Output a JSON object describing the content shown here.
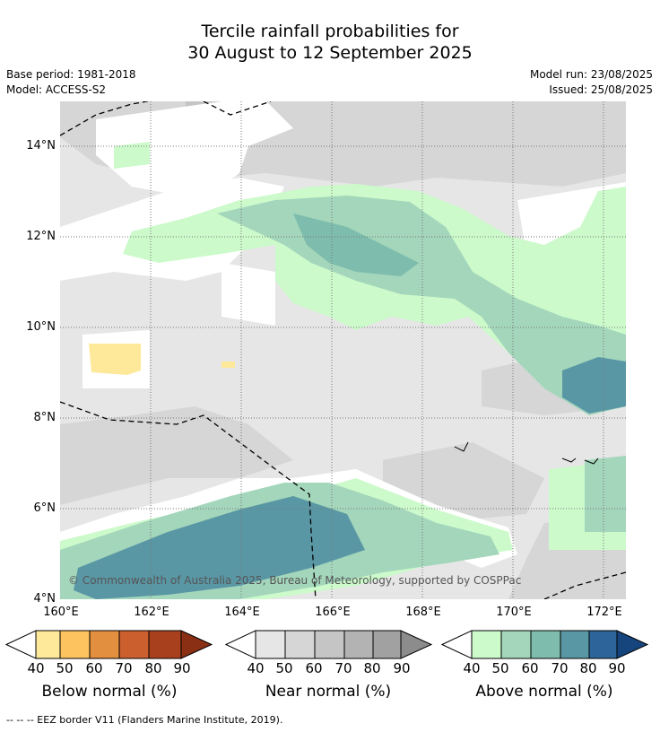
{
  "title_line1": "Tercile rainfall probabilities for",
  "title_line2": "30 August to 12 September 2025",
  "meta": {
    "base_period": "Base period: 1981-2018",
    "model": "Model: ACCESS-S2",
    "model_run": "Model run: 23/08/2025",
    "issued": "Issued: 25/08/2025"
  },
  "axes": {
    "y_ticks": [
      "14°N",
      "12°N",
      "10°N",
      "8°N",
      "6°N",
      "4°N"
    ],
    "x_ticks": [
      "160°E",
      "162°E",
      "164°E",
      "166°E",
      "168°E",
      "170°E",
      "172°E"
    ]
  },
  "copyright": "© Commonwealth of Australia 2025, Bureau of Meteorology, supported by COSPPac",
  "legend": {
    "ticks": [
      "40",
      "50",
      "60",
      "70",
      "80",
      "90"
    ],
    "below": {
      "title": "Below normal (%)",
      "colors": [
        "#fee99b",
        "#fdc35f",
        "#e38f40",
        "#cc5f2e",
        "#a8401d",
        "#8a2f14"
      ]
    },
    "near": {
      "title": "Near normal (%)",
      "colors": [
        "#e6e6e6",
        "#d6d6d6",
        "#c5c5c5",
        "#b3b3b3",
        "#a1a1a1",
        "#8c8c8c"
      ]
    },
    "above": {
      "title": "Above normal (%)",
      "colors": [
        "#ccfacb",
        "#a3d6bb",
        "#7ebcad",
        "#5a97a5",
        "#2d6499",
        "#16457e"
      ]
    }
  },
  "footer": "--  --  -- EEZ border V11 (Flanders Marine Institute, 2019)."
}
